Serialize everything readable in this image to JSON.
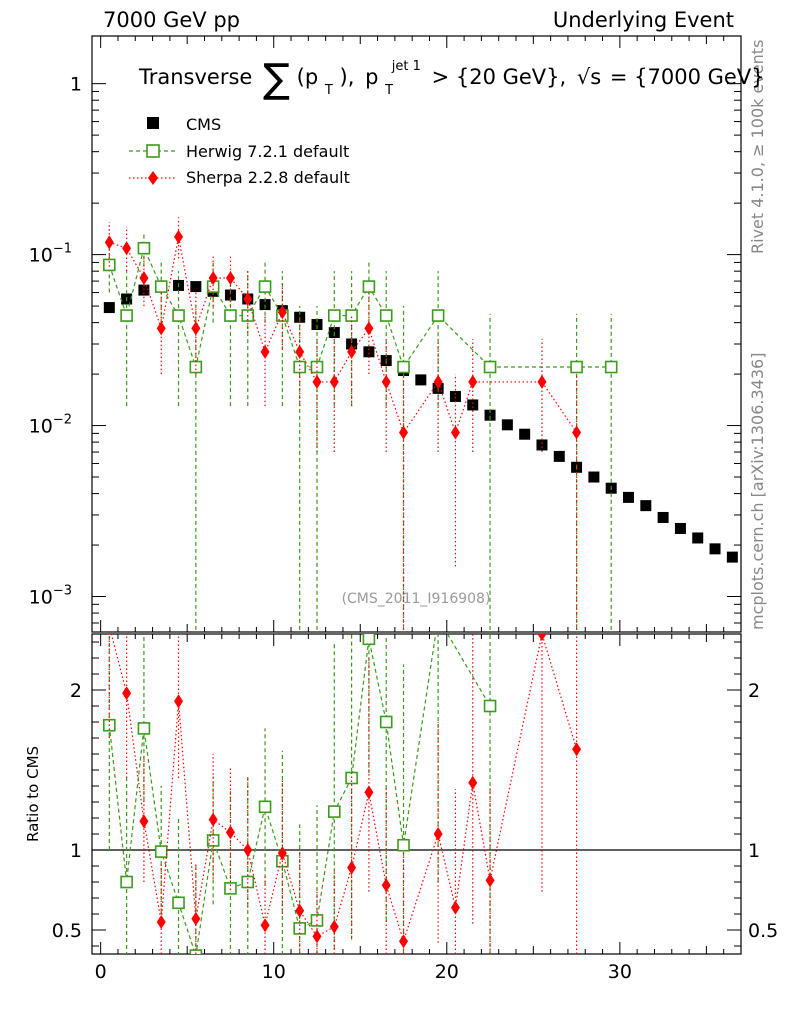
{
  "header": {
    "left": "7000 GeV pp",
    "right": "Underlying Event"
  },
  "side_labels": {
    "rivet": "Rivet 4.1.0, ≥ 100k events",
    "mcplots": "mcplots.cern.ch [arXiv:1306.3436]"
  },
  "chart_data": {
    "type": "scatter",
    "title": {
      "prefix": "Transverse",
      "sum": "∑",
      "p": "(p",
      "sub_T": "T",
      "close": "),",
      "p2": "p",
      "sub_T2": "T",
      "sup_jet": "jet 1",
      "rest": "> {20 GeV},",
      "sqrt": "√s",
      "rest2": "= {7000 GeV}"
    },
    "watermark": "(CMS_2011_I916908)",
    "ratio_ylabel": "Ratio to CMS",
    "x_ticks": [
      "0",
      "10",
      "20",
      "30"
    ],
    "xlim": [
      -0.5,
      37.0
    ],
    "main_yticks": [
      {
        "v": 1,
        "base": "1",
        "exp": ""
      },
      {
        "v": 0.1,
        "base": "10",
        "exp": "−1"
      },
      {
        "v": 0.01,
        "base": "10",
        "exp": "−2"
      },
      {
        "v": 0.001,
        "base": "10",
        "exp": "−3"
      }
    ],
    "main_ylim_log": [
      0.00062,
      1.9
    ],
    "ratio_ylim": [
      0.35,
      2.35
    ],
    "ratio_yticks": [
      "0.5",
      "1",
      "2"
    ],
    "ratio_ytick_values": [
      0.5,
      1,
      2
    ],
    "legend": [
      "CMS",
      "Herwig 7.2.1 default",
      "Sherpa 2.2.8 default"
    ],
    "colors": {
      "cms": "#000000",
      "herwig": "#3b9b1b",
      "sherpa": "#ff0000",
      "side": "#888888"
    },
    "series": [
      {
        "name": "CMS",
        "x": [
          0.5,
          1.5,
          2.5,
          3.5,
          4.5,
          5.5,
          6.5,
          7.5,
          8.5,
          9.5,
          10.5,
          11.5,
          12.5,
          13.5,
          14.5,
          15.5,
          16.5,
          17.5,
          18.5,
          19.5,
          20.5,
          21.5,
          22.5,
          23.5,
          24.5,
          25.5,
          26.5,
          27.5,
          28.5,
          29.5,
          30.5,
          31.5,
          32.5,
          33.5,
          34.5,
          35.5,
          36.5
        ],
        "y": [
          0.049,
          0.055,
          0.062,
          0.065,
          0.066,
          0.065,
          0.061,
          0.058,
          0.055,
          0.051,
          0.047,
          0.043,
          0.039,
          0.035,
          0.03,
          0.027,
          0.024,
          0.021,
          0.0185,
          0.0165,
          0.0148,
          0.0132,
          0.0115,
          0.0101,
          0.0089,
          0.0077,
          0.0066,
          0.0057,
          0.005,
          0.0043,
          0.0038,
          0.0034,
          0.0029,
          0.0025,
          0.0022,
          0.0019,
          0.0017
        ]
      },
      {
        "name": "Herwig 7.2.1 default",
        "x": [
          0.5,
          1.5,
          2.5,
          3.5,
          4.5,
          5.5,
          6.5,
          7.5,
          8.5,
          9.5,
          10.5,
          11.5,
          12.5,
          13.5,
          14.5,
          15.5,
          16.5,
          17.5,
          19.5,
          22.5,
          27.5,
          29.5
        ],
        "y": [
          0.087,
          0.044,
          0.109,
          0.065,
          0.044,
          0.022,
          0.065,
          0.044,
          0.044,
          0.065,
          0.044,
          0.022,
          0.022,
          0.044,
          0.044,
          0.065,
          0.044,
          0.022,
          0.044,
          0.022,
          0.022,
          0.022
        ],
        "lo": [
          0.06,
          0.013,
          0.085,
          0.04,
          0.013,
          0.0003,
          0.04,
          0.013,
          0.013,
          0.04,
          0.013,
          0.0003,
          0.0003,
          0.013,
          0.013,
          0.04,
          0.013,
          0.0003,
          0.013,
          0.0003,
          0.0003,
          0.0003
        ],
        "hi": [
          0.115,
          0.08,
          0.135,
          0.09,
          0.08,
          0.05,
          0.09,
          0.08,
          0.08,
          0.09,
          0.08,
          0.05,
          0.05,
          0.08,
          0.08,
          0.09,
          0.08,
          0.05,
          0.08,
          0.045,
          0.045,
          0.045
        ]
      },
      {
        "name": "Sherpa 2.2.8 default",
        "x": [
          0.5,
          1.5,
          2.5,
          3.5,
          4.5,
          5.5,
          6.5,
          7.5,
          8.5,
          9.5,
          10.5,
          11.5,
          12.5,
          13.5,
          14.5,
          15.5,
          16.5,
          17.5,
          19.5,
          20.5,
          21.5,
          25.5,
          27.5
        ],
        "y": [
          0.118,
          0.109,
          0.073,
          0.037,
          0.127,
          0.037,
          0.073,
          0.073,
          0.055,
          0.027,
          0.046,
          0.027,
          0.018,
          0.018,
          0.027,
          0.037,
          0.018,
          0.0091,
          0.018,
          0.0091,
          0.018,
          0.018,
          0.0091
        ],
        "lo": [
          0.085,
          0.08,
          0.05,
          0.02,
          0.095,
          0.02,
          0.05,
          0.05,
          0.035,
          0.013,
          0.028,
          0.013,
          0.007,
          0.007,
          0.013,
          0.02,
          0.007,
          0.0003,
          0.007,
          0.0015,
          0.007,
          0.007,
          0.0003
        ],
        "hi": [
          0.155,
          0.145,
          0.1,
          0.06,
          0.165,
          0.06,
          0.1,
          0.1,
          0.08,
          0.045,
          0.07,
          0.045,
          0.032,
          0.032,
          0.045,
          0.06,
          0.032,
          0.02,
          0.032,
          0.02,
          0.032,
          0.032,
          0.02
        ]
      }
    ],
    "ratio_series": [
      {
        "name": "Herwig 7.2.1 default",
        "x": [
          0.5,
          1.5,
          2.5,
          3.5,
          4.5,
          5.5,
          6.5,
          7.5,
          8.5,
          9.5,
          10.5,
          11.5,
          12.5,
          13.5,
          14.5,
          15.5,
          16.5,
          17.5,
          19.5,
          22.5
        ],
        "y": [
          1.78,
          0.8,
          1.76,
          0.99,
          0.67,
          0.34,
          1.06,
          0.76,
          0.8,
          1.27,
          0.93,
          0.51,
          0.56,
          1.24,
          1.45,
          2.32,
          1.8,
          1.03,
          2.45,
          1.9
        ],
        "lo": [
          1.0,
          0.25,
          1.3,
          0.6,
          0.25,
          0.0,
          0.66,
          0.25,
          0.25,
          0.78,
          0.3,
          0.0,
          0.0,
          0.38,
          0.44,
          1.48,
          0.55,
          0.0,
          0.8,
          0.0
        ],
        "hi": [
          2.4,
          1.45,
          2.4,
          1.4,
          1.2,
          0.9,
          1.46,
          1.38,
          1.46,
          1.76,
          1.62,
          1.16,
          1.28,
          2.3,
          2.4,
          2.4,
          2.4,
          2.16,
          2.4,
          2.4
        ]
      },
      {
        "name": "Sherpa 2.2.8 default",
        "x": [
          0.5,
          1.5,
          2.5,
          3.5,
          4.5,
          5.5,
          6.5,
          7.5,
          8.5,
          9.5,
          10.5,
          11.5,
          12.5,
          13.5,
          14.5,
          15.5,
          16.5,
          17.5,
          19.5,
          20.5,
          21.5,
          22.5,
          25.5,
          27.5
        ],
        "y": [
          2.4,
          1.98,
          1.18,
          0.55,
          1.93,
          0.57,
          1.19,
          1.11,
          1.0,
          0.53,
          0.98,
          0.62,
          0.46,
          0.52,
          0.89,
          1.36,
          0.78,
          0.43,
          1.1,
          0.64,
          1.42,
          0.81,
          2.35,
          1.63
        ],
        "lo": [
          1.7,
          1.45,
          0.8,
          0.3,
          1.45,
          0.3,
          0.82,
          0.75,
          0.64,
          0.25,
          0.6,
          0.3,
          0.18,
          0.2,
          0.45,
          0.74,
          0.3,
          0.0,
          0.42,
          0.1,
          0.54,
          0.3,
          0.74,
          0.0
        ],
        "hi": [
          2.4,
          2.4,
          1.6,
          0.92,
          2.4,
          0.92,
          1.6,
          1.52,
          1.45,
          0.85,
          1.45,
          1.0,
          0.76,
          0.86,
          1.48,
          2.2,
          1.4,
          1.0,
          1.8,
          1.38,
          2.4,
          1.4,
          2.4,
          2.4
        ]
      }
    ]
  }
}
